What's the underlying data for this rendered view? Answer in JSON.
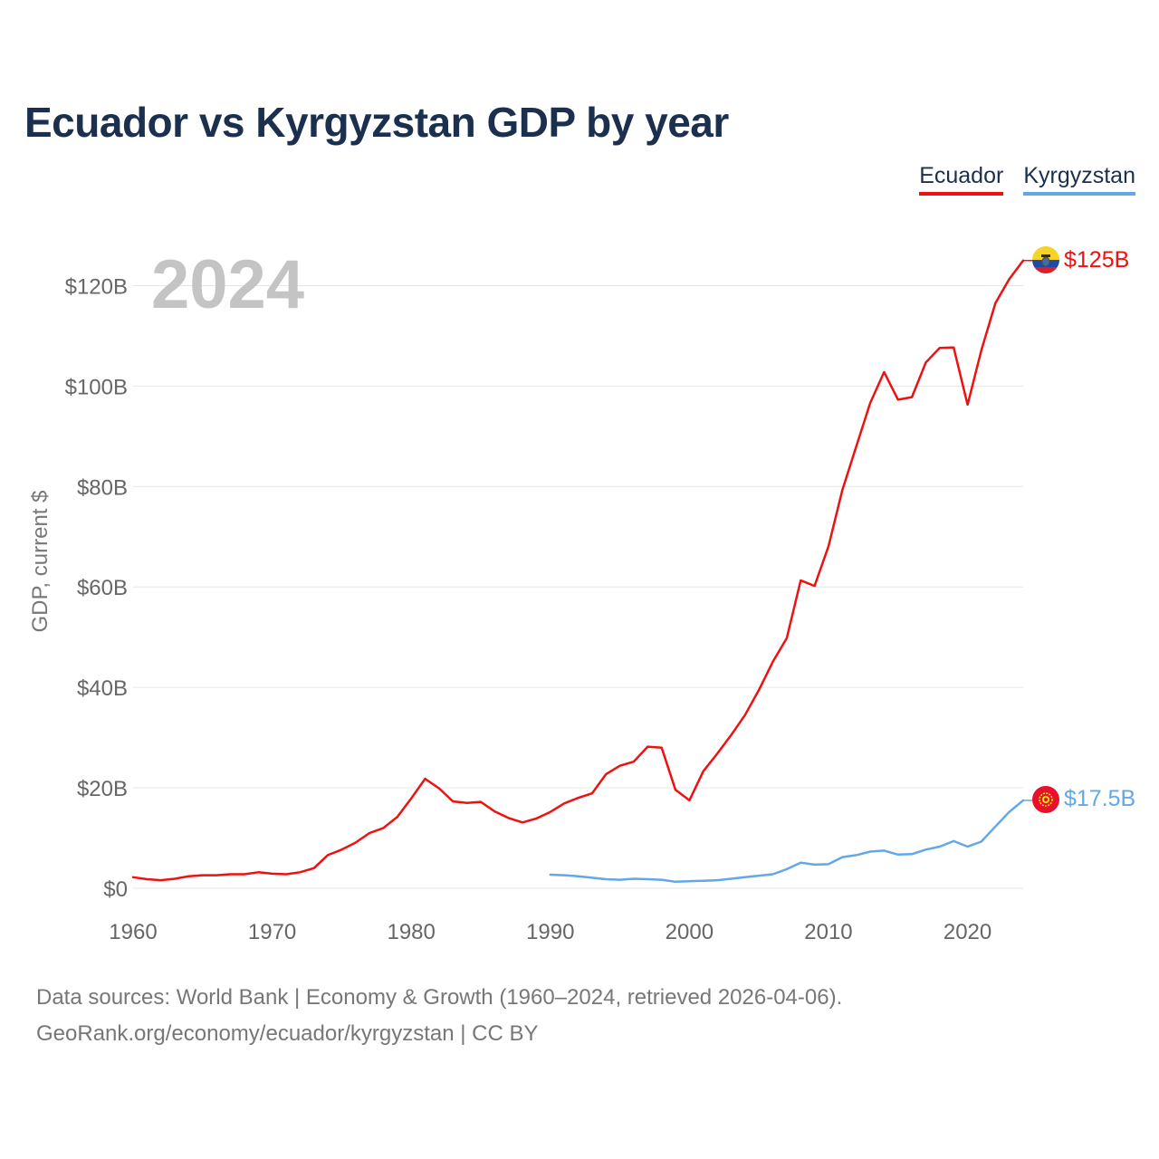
{
  "title": "Ecuador vs Kyrgyzstan GDP by year",
  "legend": [
    {
      "label": "Ecuador",
      "color": "#ee1111"
    },
    {
      "label": "Kyrgyzstan",
      "color": "#62a8e6"
    }
  ],
  "year_watermark": "2024",
  "footer": {
    "sources": "Data sources: World Bank | Economy & Growth (1960–2024, retrieved 2026-04-06).",
    "credit": "GeoRank.org/economy/ecuador/kyrgyzstan | CC BY"
  },
  "chart_data": {
    "type": "line",
    "title": "Ecuador vs Kyrgyzstan GDP by year",
    "xlabel": "",
    "ylabel": "GDP, current $",
    "xlim": [
      1960,
      2024
    ],
    "ylim": [
      0,
      130
    ],
    "y_unit": "billions USD",
    "grid": true,
    "legend_position": "top-right",
    "x_ticks": [
      1960,
      1970,
      1980,
      1990,
      2000,
      2010,
      2020
    ],
    "x_tick_labels": [
      "1960",
      "1970",
      "1980",
      "1990",
      "2000",
      "2010",
      "2020"
    ],
    "y_ticks": [
      0,
      20,
      40,
      60,
      80,
      100,
      120
    ],
    "y_tick_labels": [
      "$0",
      "$20B",
      "$40B",
      "$60B",
      "$80B",
      "$100B",
      "$120B"
    ],
    "series": [
      {
        "name": "Ecuador",
        "color": "#ee1111",
        "end_label": "$125B",
        "flag": "flag-ecuador",
        "x": [
          1960,
          1961,
          1962,
          1963,
          1964,
          1965,
          1966,
          1967,
          1968,
          1969,
          1970,
          1971,
          1972,
          1973,
          1974,
          1975,
          1976,
          1977,
          1978,
          1979,
          1980,
          1981,
          1982,
          1983,
          1984,
          1985,
          1986,
          1987,
          1988,
          1989,
          1990,
          1991,
          1992,
          1993,
          1994,
          1995,
          1996,
          1997,
          1998,
          1999,
          2000,
          2001,
          2002,
          2003,
          2004,
          2005,
          2006,
          2007,
          2008,
          2009,
          2010,
          2011,
          2012,
          2013,
          2014,
          2015,
          2016,
          2017,
          2018,
          2019,
          2020,
          2021,
          2022,
          2023,
          2024
        ],
        "values": [
          2.2,
          1.8,
          1.6,
          1.9,
          2.4,
          2.6,
          2.6,
          2.8,
          2.8,
          3.2,
          2.9,
          2.8,
          3.2,
          4.0,
          6.6,
          7.7,
          9.1,
          11.0,
          12.0,
          14.2,
          17.9,
          21.8,
          19.9,
          17.3,
          17.0,
          17.2,
          15.3,
          14.0,
          13.1,
          13.9,
          15.2,
          16.9,
          18.0,
          18.9,
          22.7,
          24.4,
          25.2,
          28.2,
          28.0,
          19.6,
          17.5,
          23.3,
          26.8,
          30.5,
          34.5,
          39.5,
          45.1,
          49.8,
          61.3,
          60.2,
          68.1,
          79.3,
          88.0,
          96.6,
          102.8,
          97.3,
          97.8,
          104.7,
          107.6,
          107.7,
          96.3,
          107.2,
          116.5,
          121.3,
          125.0
        ]
      },
      {
        "name": "Kyrgyzstan",
        "color": "#62a8e6",
        "end_label": "$17.5B",
        "flag": "flag-kyrgyzstan",
        "x": [
          1990,
          1991,
          1992,
          1993,
          1994,
          1995,
          1996,
          1997,
          1998,
          1999,
          2000,
          2001,
          2002,
          2003,
          2004,
          2005,
          2006,
          2007,
          2008,
          2009,
          2010,
          2011,
          2012,
          2013,
          2014,
          2015,
          2016,
          2017,
          2018,
          2019,
          2020,
          2021,
          2022,
          2023,
          2024
        ],
        "values": [
          2.7,
          2.6,
          2.4,
          2.1,
          1.8,
          1.7,
          1.9,
          1.8,
          1.7,
          1.3,
          1.4,
          1.5,
          1.6,
          1.9,
          2.2,
          2.5,
          2.8,
          3.8,
          5.1,
          4.7,
          4.8,
          6.2,
          6.6,
          7.3,
          7.5,
          6.7,
          6.8,
          7.7,
          8.3,
          9.4,
          8.3,
          9.3,
          12.3,
          15.2,
          17.5
        ]
      }
    ]
  }
}
